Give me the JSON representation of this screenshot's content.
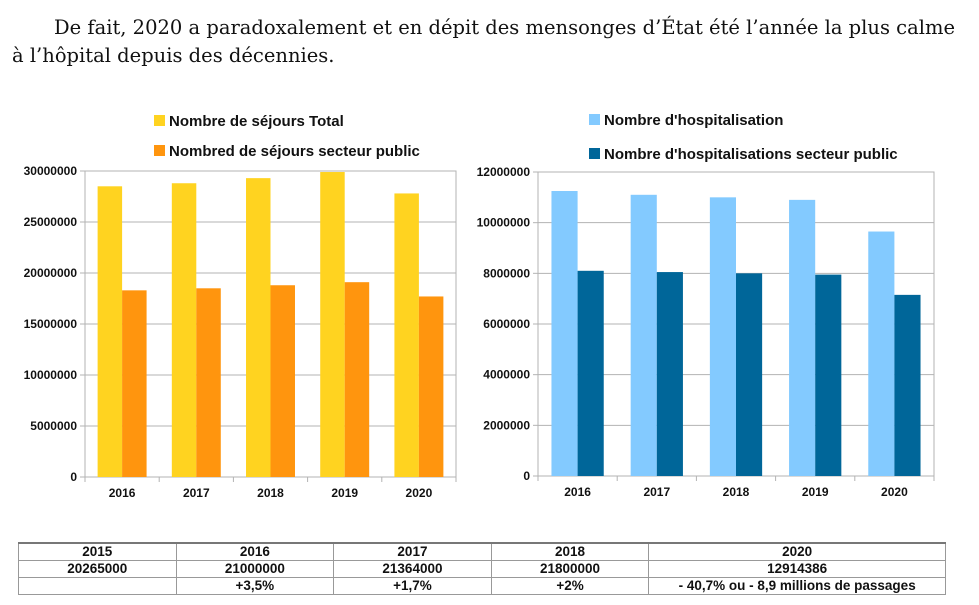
{
  "paragraph": "De fait, 2020 a paradoxalement et en dépit des mensonges d’État été l’année la plus calme à l’hôpital depuis des décennies.",
  "chart_data": [
    {
      "type": "bar",
      "categories": [
        "2016",
        "2017",
        "2018",
        "2019",
        "2020"
      ],
      "series": [
        {
          "name": "Nombre de séjours Total",
          "color": "#ffd320",
          "values": [
            28500000,
            28800000,
            29300000,
            29900000,
            27800000
          ]
        },
        {
          "name": "Nombred de séjours secteur public",
          "color": "#ff950e",
          "values": [
            18300000,
            18500000,
            18800000,
            19100000,
            17700000
          ]
        }
      ],
      "y_ticks": [
        "0",
        "5000000",
        "10000000",
        "15000000",
        "20000000",
        "25000000",
        "30000000"
      ],
      "ylim": [
        0,
        30000000
      ],
      "grid": true
    },
    {
      "type": "bar",
      "categories": [
        "2016",
        "2017",
        "2018",
        "2019",
        "2020"
      ],
      "series": [
        {
          "name": "Nombre d'hospitalisation",
          "color": "#83caff",
          "values": [
            11250000,
            11100000,
            11000000,
            10900000,
            9650000
          ]
        },
        {
          "name": "Nombre d'hospitalisations secteur public",
          "color": "#006699",
          "values": [
            8100000,
            8050000,
            8000000,
            7950000,
            7150000
          ]
        }
      ],
      "y_ticks": [
        "0",
        "2000000",
        "4000000",
        "6000000",
        "8000000",
        "10000000",
        "12000000"
      ],
      "ylim": [
        0,
        12000000
      ],
      "grid": true
    }
  ],
  "table": {
    "rows": [
      [
        "2015",
        "2016",
        "2017",
        "2018",
        "2020"
      ],
      [
        "20265000",
        "21000000",
        "21364000",
        "21800000",
        "12914386"
      ],
      [
        "",
        "+3,5%",
        "+1,7%",
        "+2%",
        "- 40,7% ou - 8,9 millions de passages"
      ]
    ]
  }
}
